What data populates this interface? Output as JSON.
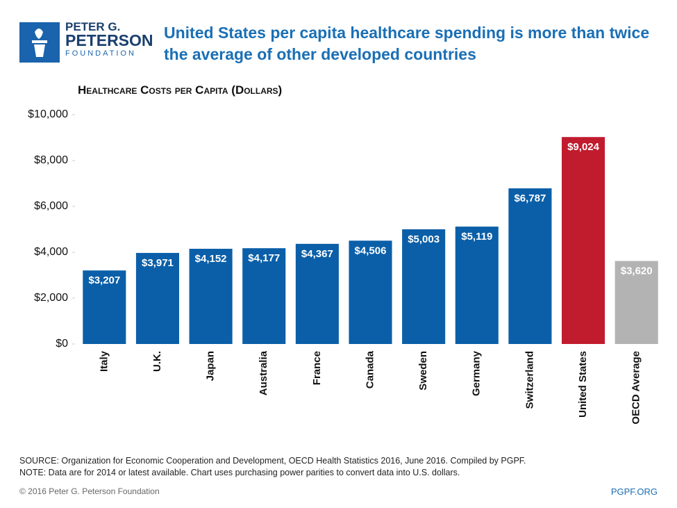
{
  "header": {
    "logo_lines": [
      "PETER G.",
      "PETERSON",
      "FOUNDATION"
    ]
  },
  "chart_data": {
    "type": "bar",
    "title": "United States per capita healthcare spending is more than twice the average of other developed countries",
    "subtitle": "Healthcare Costs per Capita (Dollars)",
    "categories": [
      "Italy",
      "U.K.",
      "Japan",
      "Australia",
      "France",
      "Canada",
      "Sweden",
      "Germany",
      "Switzerland",
      "United States",
      "OECD Average"
    ],
    "values": [
      3207,
      3971,
      4152,
      4177,
      4367,
      4506,
      5003,
      5119,
      6787,
      9024,
      3620
    ],
    "value_labels": [
      "$3,207",
      "$3,971",
      "$4,152",
      "$4,177",
      "$4,367",
      "$4,506",
      "$5,003",
      "$5,119",
      "$6,787",
      "$9,024",
      "$3,620"
    ],
    "colors": [
      "#0b5fa8",
      "#0b5fa8",
      "#0b5fa8",
      "#0b5fa8",
      "#0b5fa8",
      "#0b5fa8",
      "#0b5fa8",
      "#0b5fa8",
      "#0b5fa8",
      "#c11b2e",
      "#b3b3b3"
    ],
    "ylim": [
      0,
      10000
    ],
    "yticks": [
      {
        "value": 0,
        "label": "$0"
      },
      {
        "value": 2000,
        "label": "$2,000"
      },
      {
        "value": 4000,
        "label": "$4,000"
      },
      {
        "value": 6000,
        "label": "$6,000"
      },
      {
        "value": 8000,
        "label": "$8,000"
      },
      {
        "value": 10000,
        "label": "$10,000"
      }
    ]
  },
  "footer": {
    "source": "SOURCE: Organization for Economic Cooperation and Development, OECD Health Statistics 2016, June 2016. Compiled by PGPF.",
    "note": "NOTE: Data are for 2014 or latest available. Chart uses purchasing power parities to convert data into U.S. dollars.",
    "copyright": "© 2016 Peter G. Peterson Foundation",
    "site": "PGPF.ORG"
  }
}
